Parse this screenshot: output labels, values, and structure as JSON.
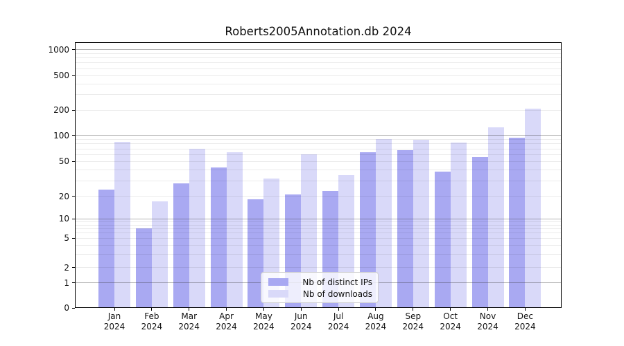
{
  "chart": {
    "title": "Roberts2005Annotation.db 2024"
  },
  "chart_data": {
    "type": "bar",
    "title": "Roberts2005Annotation.db 2024",
    "categories": [
      "Jan",
      "Feb",
      "Mar",
      "Apr",
      "May",
      "Jun",
      "Jul",
      "Aug",
      "Sep",
      "Oct",
      "Nov",
      "Dec"
    ],
    "x_year_label": "2024",
    "series": [
      {
        "name": "Nb of distinct IPs",
        "color": "#a9a9f2",
        "values": [
          24,
          7,
          28,
          43,
          18,
          21,
          23,
          64,
          68,
          38,
          56,
          94
        ]
      },
      {
        "name": "Nb of downloads",
        "color": "#d9d9f9",
        "values": [
          84,
          17,
          70,
          64,
          32,
          61,
          35,
          90,
          89,
          82,
          125,
          208
        ]
      }
    ],
    "yscale": "symlog",
    "y_ticks": [
      0,
      1,
      2,
      5,
      10,
      20,
      50,
      100,
      200,
      500,
      1000
    ],
    "ylim": [
      0,
      1200
    ],
    "grid": true,
    "legend": {
      "labels": [
        "Nb of distinct IPs",
        "Nb of downloads"
      ],
      "position": "lower center"
    }
  }
}
